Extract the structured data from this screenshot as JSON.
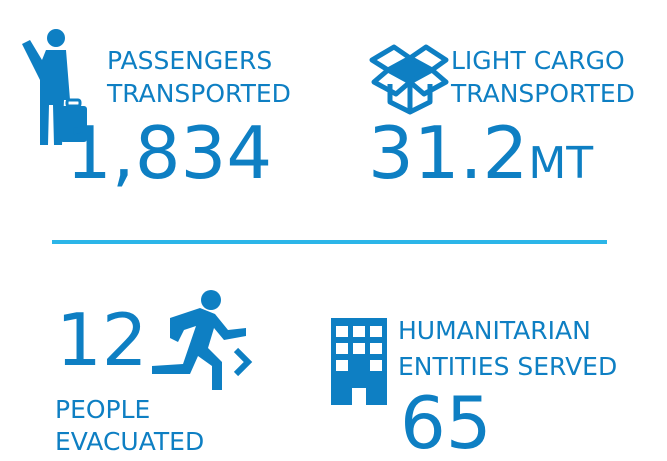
{
  "stats": [
    {
      "label": [
        "PASSENGERS",
        "TRANSPORTED"
      ],
      "value": "1,834"
    },
    {
      "label": [
        "LIGHT CARGO",
        "TRANSPORTED"
      ],
      "value": "31.2",
      "unit": "MT"
    },
    {
      "label": [
        "PEOPLE",
        "EVACUATED"
      ],
      "value": "12"
    },
    {
      "label": [
        "HUMANITARIAN",
        "ENTITIES SERVED"
      ],
      "value": "65"
    }
  ]
}
